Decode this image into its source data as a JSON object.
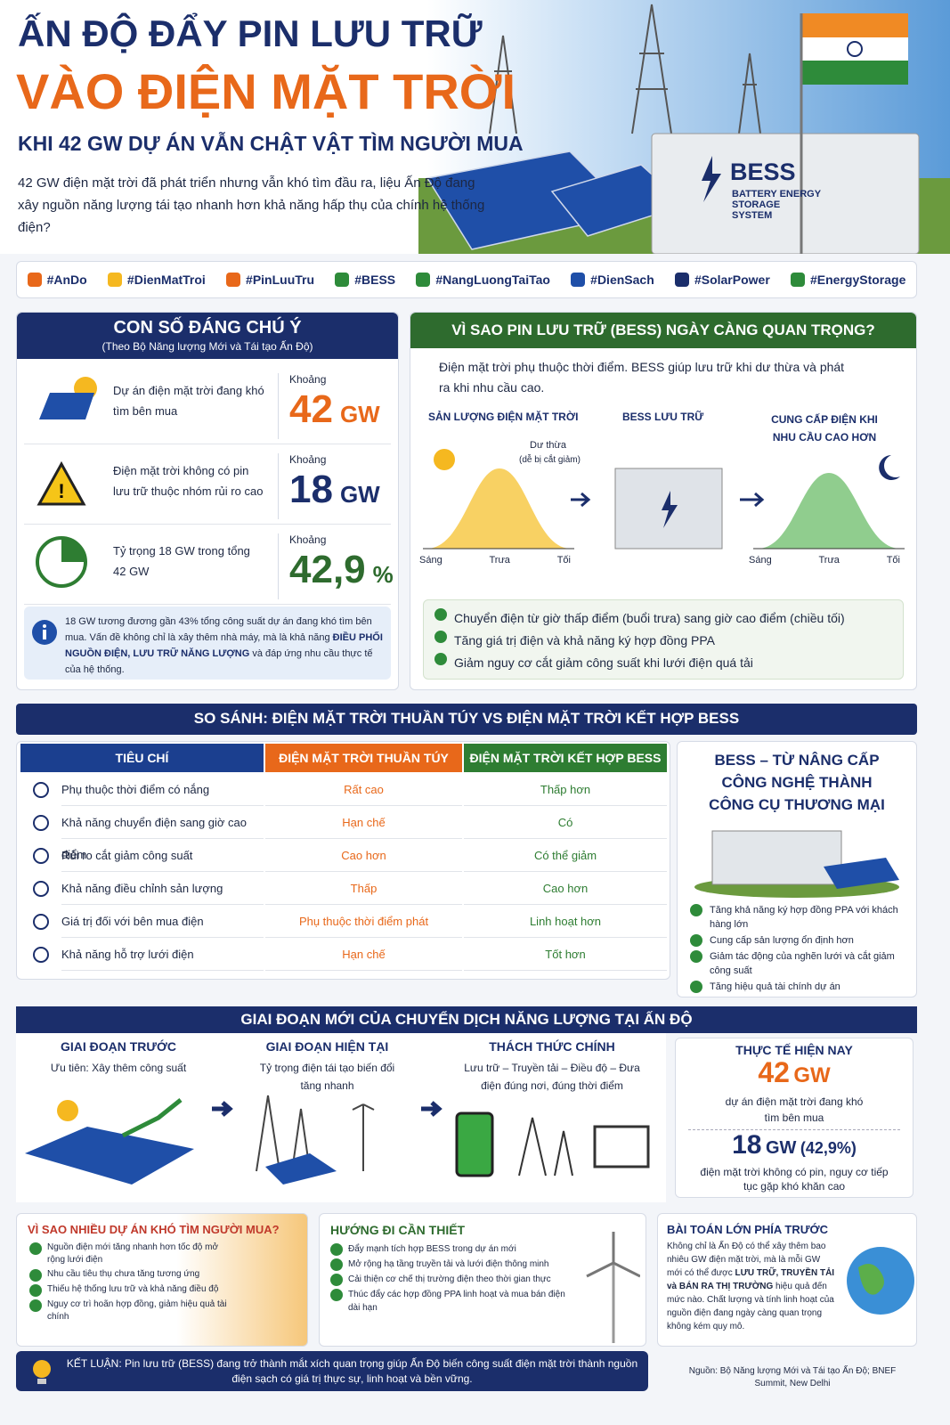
{
  "header": {
    "title_line1": "ẤN ĐỘ ĐẨY PIN LƯU TRỮ",
    "title_line2": "VÀO ĐIỆN MẶT TRỜI",
    "subtitle": "KHI 42 GW DỰ ÁN VẪN CHẬT VẬT TÌM NGƯỜI MUA",
    "intro": "42 GW điện mặt trời đã phát triển nhưng vẫn khó tìm đầu ra, liệu Ấn Độ đang xây nguồn năng lượng tái tạo nhanh hơn khả năng hấp thụ của chính hệ thống điện?",
    "bess_label": "BESS",
    "bess_sub": "BATTERY ENERGY STORAGE SYSTEM"
  },
  "hashtags": [
    "#AnDo",
    "#DienMatTroi",
    "#PinLuuTru",
    "#BESS",
    "#NangLuongTaiTao",
    "#DienSach",
    "#SolarPower",
    "#EnergyStorage"
  ],
  "key_figures": {
    "title": "CON SỐ ĐÁNG CHÚ Ý",
    "source": "(Theo Bộ Năng lượng Mới và Tái tạo Ấn Độ)",
    "items": [
      {
        "desc": "Dự án điện mặt trời đang khó tìm bên mua",
        "prefix": "Khoảng",
        "number": "42",
        "unit": "GW"
      },
      {
        "desc": "Điện mặt trời không có pin lưu trữ thuộc nhóm rủi ro cao",
        "prefix": "Khoảng",
        "number": "18",
        "unit": "GW"
      },
      {
        "desc": "Tỷ trọng 18 GW trong tổng 42 GW",
        "prefix": "Khoảng",
        "number": "42,9",
        "unit": "%"
      }
    ],
    "note_start": "18 GW tương đương gần 43% tổng công suất dự án đang khó tìm bên mua. Vấn đề không chỉ là xây thêm nhà máy, mà là khả năng ",
    "note_bold": "ĐIỀU PHỐI NGUỒN ĐIỆN, LƯU TRỮ NĂNG LƯỢNG",
    "note_end": " và đáp ứng nhu cầu thực tế của hệ thống."
  },
  "why_bess": {
    "title": "VÌ SAO PIN LƯU TRỮ (BESS) NGÀY CÀNG QUAN TRỌNG?",
    "intro": "Điện mặt trời phụ thuộc thời điểm. BESS giúp lưu trữ khi dư thừa và phát ra khi nhu cầu cao.",
    "solar_label": "SẢN LƯỢNG ĐIỆN MẶT TRỜI",
    "storage_label": "BESS LƯU TRỮ",
    "supply_label": "CUNG CẤP ĐIỆN KHI NHU CẦU CAO HƠN",
    "surplus": "Dư thừa",
    "surplus_note": "(dễ bị cắt giảm)",
    "axis_left": [
      "Sáng",
      "Trưa",
      "Tối"
    ],
    "axis_right": [
      "Sáng",
      "Trưa",
      "Tối"
    ],
    "benefits": [
      "Chuyển điện từ giờ thấp điểm (buổi trưa) sang giờ cao điểm (chiều tối)",
      "Tăng giá trị điện và khả năng ký hợp đồng PPA",
      "Giảm nguy cơ cắt giảm công suất khi lưới điện quá tải"
    ]
  },
  "comparison": {
    "title": "SO SÁNH: ĐIỆN MẶT TRỜI THUẦN TÚY VS ĐIỆN MẶT TRỜI KẾT HỢP BESS",
    "headers": [
      "TIÊU CHÍ",
      "ĐIỆN MẶT TRỜI THUẦN TÚY",
      "ĐIỆN MẶT TRỜI KẾT HỢP BESS"
    ],
    "rows": [
      [
        "Phụ thuộc thời điểm có nắng",
        "Rất cao",
        "Thấp hơn"
      ],
      [
        "Khả năng chuyển điện sang giờ cao điểm",
        "Hạn chế",
        "Có"
      ],
      [
        "Rủi ro cắt giảm công suất",
        "Cao hơn",
        "Có thể giảm"
      ],
      [
        "Khả năng điều chỉnh sản lượng",
        "Thấp",
        "Cao hơn"
      ],
      [
        "Giá trị đối với bên mua điện",
        "Phụ thuộc thời điểm phát",
        "Linh hoạt hơn"
      ],
      [
        "Khả năng hỗ trợ lưới điện",
        "Hạn chế",
        "Tốt hơn"
      ]
    ],
    "side_title": "BESS – TỪ NÂNG CẤP CÔNG NGHỆ THÀNH CÔNG CỤ THƯƠNG MẠI",
    "side_benefits": [
      "Tăng khả năng ký hợp đồng PPA với khách hàng lớn",
      "Cung cấp sản lượng ổn định hơn",
      "Giảm tác động của nghẽn lưới và cắt giảm công suất",
      "Tăng hiệu quả tài chính dự án"
    ]
  },
  "transition": {
    "title": "GIAI ĐOẠN MỚI CỦA CHUYỂN DỊCH NĂNG LƯỢNG TẠI ẤN ĐỘ",
    "stages": [
      {
        "title": "GIAI ĐOẠN TRƯỚC",
        "desc": "Ưu tiên: Xây thêm công suất"
      },
      {
        "title": "GIAI ĐOẠN HIỆN TẠI",
        "desc": "Tỷ trọng điện tái tạo biến đổi tăng nhanh"
      },
      {
        "title": "THÁCH THỨC CHÍNH",
        "desc": "Lưu trữ – Truyền tải – Điều độ – Đưa điện đúng nơi, đúng thời điểm"
      }
    ],
    "reality": {
      "title": "THỰC TẾ HIỆN NAY",
      "number1": "42",
      "unit1": "GW",
      "desc1": "dự án điện mặt trời đang khó tìm bên mua",
      "number2": "18",
      "unit2": "GW",
      "share": "(42,9%)",
      "desc2": "điện mặt trời không có pin, nguy cơ tiếp tục gặp khó khăn cao"
    }
  },
  "bottom": {
    "why_hard": {
      "title": "VÌ SAO NHIỀU DỰ ÁN KHÓ TÌM NGƯỜI MUA?",
      "items": [
        "Nguồn điện mới tăng nhanh hơn tốc độ mở rộng lưới điện",
        "Nhu cầu tiêu thụ chưa tăng tương ứng",
        "Thiếu hệ thống lưu trữ và khả năng điều độ",
        "Nguy cơ trì hoãn hợp đồng, giảm hiệu quả tài chính"
      ]
    },
    "direction": {
      "title": "HƯỚNG ĐI CẦN THIẾT",
      "items": [
        "Đẩy mạnh tích hợp BESS trong dự án mới",
        "Mở rộng hạ tầng truyền tải và lưới điện thông minh",
        "Cải thiện cơ chế thị trường điện theo thời gian thực",
        "Thúc đẩy các hợp đồng PPA linh hoạt và mua bán điện dài hạn"
      ]
    },
    "challenge": {
      "title": "BÀI TOÁN LỚN PHÍA TRƯỚC",
      "text_start": "Không chỉ là Ấn Độ có thể xây thêm bao nhiêu GW điện mặt trời, mà là mỗi GW mới có thể được ",
      "text_bold": "LƯU TRỮ, TRUYỀN TẢI và BÁN RA THỊ TRƯỜNG",
      "text_end": " hiệu quả đến mức nào. Chất lượng và tính linh hoạt của nguồn điện đang ngày càng quan trọng không kém quy mô."
    },
    "conclusion": "KẾT LUẬN: Pin lưu trữ (BESS) đang trở thành mắt xích quan trọng giúp Ấn Độ biến công suất điện mặt trời thành nguồn điện sạch có giá trị thực sự, linh hoạt và bền vững.",
    "source": "Nguồn: Bộ Năng lượng Mới và Tái tạo Ấn Độ; BNEF Summit, New Delhi"
  }
}
